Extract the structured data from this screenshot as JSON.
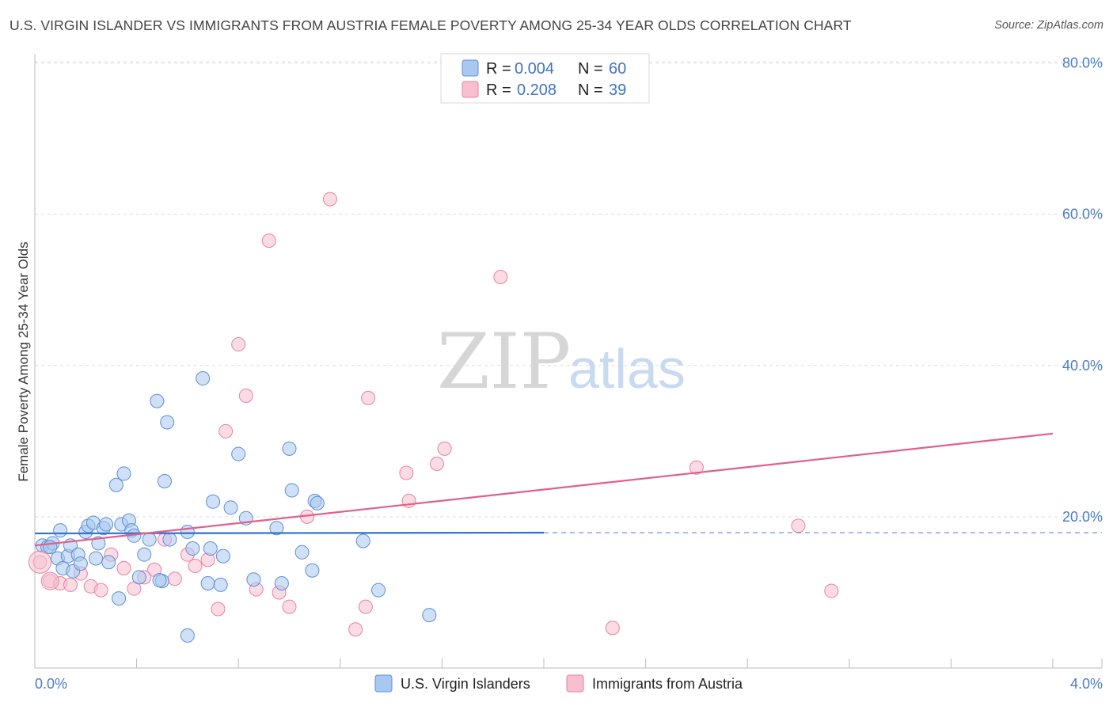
{
  "header": {
    "title": "U.S. VIRGIN ISLANDER VS IMMIGRANTS FROM AUSTRIA FEMALE POVERTY AMONG 25-34 YEAR OLDS CORRELATION CHART",
    "source": "Source: ZipAtlas.com"
  },
  "watermark": {
    "zip": "ZIP",
    "atlas": "atlas"
  },
  "legend_top": [
    {
      "r_label": "R =",
      "r_value": "0.004",
      "n_label": "N =",
      "n_value": "60",
      "color": "#a9c8f0",
      "stroke": "#5b8fd6"
    },
    {
      "r_label": "R =",
      "r_value": "0.208",
      "n_label": "N =",
      "n_value": "39",
      "color": "#f7bfd0",
      "stroke": "#e582a2"
    }
  ],
  "legend_bottom": [
    {
      "label": "U.S. Virgin Islanders",
      "color": "#a9c8f0",
      "stroke": "#5b8fd6"
    },
    {
      "label": "Immigrants from Austria",
      "color": "#f7bfd0",
      "stroke": "#e582a2"
    }
  ],
  "chart_data": {
    "type": "scatter",
    "title": "U.S. VIRGIN ISLANDER VS IMMIGRANTS FROM AUSTRIA FEMALE POVERTY AMONG 25-34 YEAR OLDS CORRELATION CHART",
    "xlabel": "",
    "ylabel": "Female Poverty Among 25-34 Year Olds",
    "xlim": [
      0,
      4
    ],
    "ylim": [
      0,
      80
    ],
    "x_unit": "%",
    "y_unit": "%",
    "x_tick_labels": [
      "0.0%",
      "4.0%"
    ],
    "y_tick_labels": [
      "20.0%",
      "40.0%",
      "60.0%",
      "80.0%"
    ],
    "y_ticks": [
      20,
      40,
      60,
      80
    ],
    "grid": true,
    "legend_position": "top-center",
    "series": [
      {
        "name": "U.S. Virgin Islanders",
        "color": "#a9c8f0",
        "stroke": "#5b8fd6",
        "trend_color": "#2f6fcf",
        "trend": {
          "x0": 0.0,
          "y0": 17.8,
          "x1": 2.0,
          "y1": 17.9,
          "dashed_to": 4.0
        },
        "points": [
          [
            0.03,
            16.2
          ],
          [
            0.05,
            16.0
          ],
          [
            0.07,
            16.5
          ],
          [
            0.09,
            14.5
          ],
          [
            0.1,
            18.2
          ],
          [
            0.11,
            13.2
          ],
          [
            0.13,
            14.8
          ],
          [
            0.14,
            16.2
          ],
          [
            0.15,
            12.8
          ],
          [
            0.17,
            15.0
          ],
          [
            0.18,
            13.8
          ],
          [
            0.2,
            18.0
          ],
          [
            0.21,
            18.8
          ],
          [
            0.23,
            19.2
          ],
          [
            0.24,
            14.5
          ],
          [
            0.25,
            16.5
          ],
          [
            0.27,
            18.5
          ],
          [
            0.28,
            19.0
          ],
          [
            0.29,
            14.0
          ],
          [
            0.32,
            24.2
          ],
          [
            0.33,
            9.2
          ],
          [
            0.34,
            19.0
          ],
          [
            0.35,
            25.7
          ],
          [
            0.37,
            19.5
          ],
          [
            0.38,
            18.2
          ],
          [
            0.39,
            17.5
          ],
          [
            0.41,
            12.0
          ],
          [
            0.43,
            15.0
          ],
          [
            0.45,
            17.0
          ],
          [
            0.48,
            35.3
          ],
          [
            0.5,
            11.5
          ],
          [
            0.51,
            24.7
          ],
          [
            0.52,
            32.5
          ],
          [
            0.53,
            17.0
          ],
          [
            0.6,
            4.3
          ],
          [
            0.6,
            18.0
          ],
          [
            0.62,
            15.8
          ],
          [
            0.66,
            38.3
          ],
          [
            0.68,
            11.2
          ],
          [
            0.69,
            15.8
          ],
          [
            0.7,
            22.0
          ],
          [
            0.73,
            11.0
          ],
          [
            0.74,
            14.8
          ],
          [
            0.77,
            21.2
          ],
          [
            0.8,
            28.3
          ],
          [
            0.83,
            19.8
          ],
          [
            0.86,
            11.7
          ],
          [
            0.95,
            18.5
          ],
          [
            0.97,
            11.2
          ],
          [
            1.0,
            29.0
          ],
          [
            1.01,
            23.5
          ],
          [
            1.05,
            15.3
          ],
          [
            1.09,
            12.9
          ],
          [
            1.1,
            22.1
          ],
          [
            1.11,
            21.8
          ],
          [
            1.29,
            16.8
          ],
          [
            1.35,
            10.3
          ],
          [
            1.55,
            7.0
          ],
          [
            0.49,
            11.6
          ],
          [
            0.06,
            16.0
          ]
        ]
      },
      {
        "name": "Immigrants from Austria",
        "color": "#f7bfd0",
        "stroke": "#e582a2",
        "trend_color": "#e0608a",
        "trend": {
          "x0": 0.0,
          "y0": 16.2,
          "x1": 4.0,
          "y1": 31.0
        },
        "points": [
          [
            0.02,
            14.0
          ],
          [
            0.06,
            11.5
          ],
          [
            0.1,
            11.2
          ],
          [
            0.14,
            11.0
          ],
          [
            0.18,
            12.5
          ],
          [
            0.22,
            10.8
          ],
          [
            0.26,
            10.3
          ],
          [
            0.3,
            15.0
          ],
          [
            0.35,
            13.2
          ],
          [
            0.39,
            10.5
          ],
          [
            0.43,
            12.0
          ],
          [
            0.47,
            13.0
          ],
          [
            0.51,
            17.0
          ],
          [
            0.55,
            11.8
          ],
          [
            0.6,
            15.0
          ],
          [
            0.63,
            13.5
          ],
          [
            0.68,
            14.3
          ],
          [
            0.72,
            7.8
          ],
          [
            0.75,
            31.3
          ],
          [
            0.8,
            42.8
          ],
          [
            0.83,
            36.0
          ],
          [
            0.87,
            10.4
          ],
          [
            0.92,
            56.5
          ],
          [
            0.96,
            10.0
          ],
          [
            1.0,
            8.1
          ],
          [
            1.07,
            20.0
          ],
          [
            1.16,
            62.0
          ],
          [
            1.26,
            5.1
          ],
          [
            1.3,
            8.1
          ],
          [
            1.31,
            35.7
          ],
          [
            1.46,
            25.8
          ],
          [
            1.47,
            22.1
          ],
          [
            1.58,
            27.0
          ],
          [
            1.61,
            29.0
          ],
          [
            1.83,
            51.7
          ],
          [
            2.27,
            5.3
          ],
          [
            2.6,
            26.5
          ],
          [
            3.0,
            18.8
          ],
          [
            3.13,
            10.2
          ]
        ]
      }
    ]
  }
}
